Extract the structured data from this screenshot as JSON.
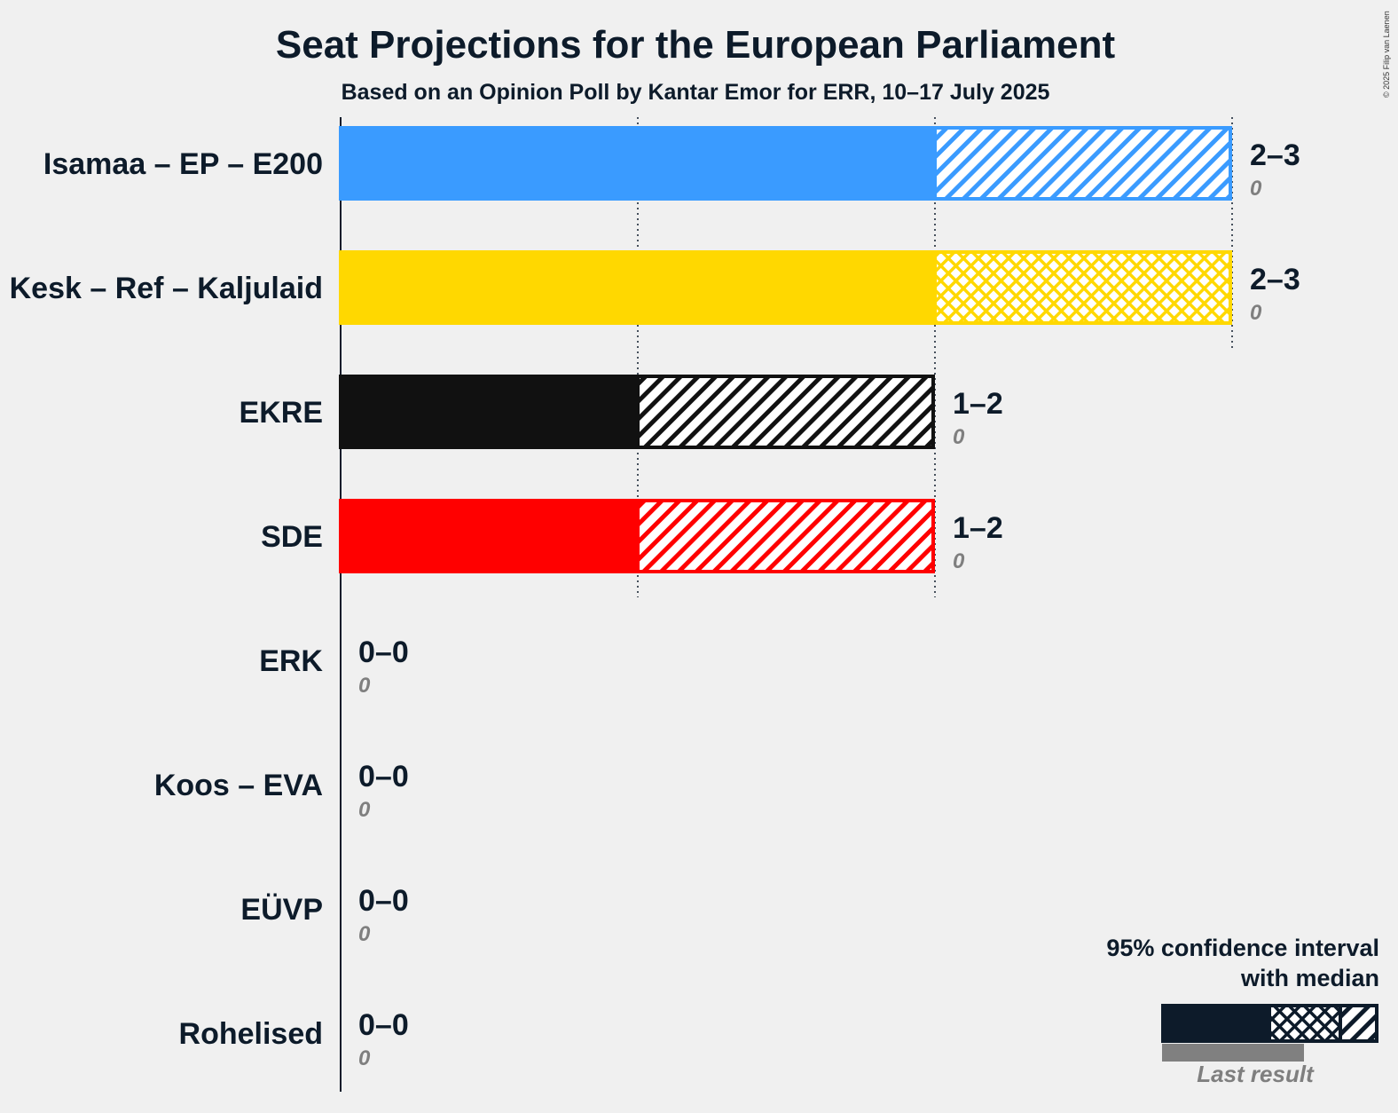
{
  "chart_data": {
    "type": "bar",
    "title": "Seat Projections for the European Parliament",
    "subtitle": "Based on an Opinion Poll by Kantar Emor for ERR, 10–17 July 2025",
    "copyright": "© 2025 Filip van Laenen",
    "xlim": [
      0,
      3
    ],
    "gridlines": [
      1,
      2,
      3
    ],
    "series": [
      {
        "party": "Isamaa – EP – E200",
        "low": 2,
        "median": 2,
        "high": 3,
        "range_label": "2–3",
        "last_result": "0",
        "last_value": 0,
        "color": "#3a9bff"
      },
      {
        "party": "Kesk – Ref – Kaljulaid",
        "low": 2,
        "median": 2,
        "high": 3,
        "range_label": "2–3",
        "last_result": "0",
        "last_value": 0,
        "color": "#ffd800"
      },
      {
        "party": "EKRE",
        "low": 1,
        "median": 1,
        "high": 2,
        "range_label": "1–2",
        "last_result": "0",
        "last_value": 0,
        "color": "#111111"
      },
      {
        "party": "SDE",
        "low": 1,
        "median": 1,
        "high": 2,
        "range_label": "1–2",
        "last_result": "0",
        "last_value": 0,
        "color": "#ff0000"
      },
      {
        "party": "ERK",
        "low": 0,
        "median": 0,
        "high": 0,
        "range_label": "0–0",
        "last_result": "0",
        "last_value": 0,
        "color": "#777777"
      },
      {
        "party": "Koos – EVA",
        "low": 0,
        "median": 0,
        "high": 0,
        "range_label": "0–0",
        "last_result": "0",
        "last_value": 0,
        "color": "#777777"
      },
      {
        "party": "EÜVP",
        "low": 0,
        "median": 0,
        "high": 0,
        "range_label": "0–0",
        "last_result": "0",
        "last_value": 0,
        "color": "#777777"
      },
      {
        "party": "Rohelised",
        "low": 0,
        "median": 0,
        "high": 0,
        "range_label": "0–0",
        "last_result": "0",
        "last_value": 0,
        "color": "#777777"
      }
    ],
    "legend": {
      "line1": "95% confidence interval",
      "line2": "with median",
      "last_result": "Last result",
      "color": "#0d1b2a",
      "last_color": "#808080"
    }
  }
}
